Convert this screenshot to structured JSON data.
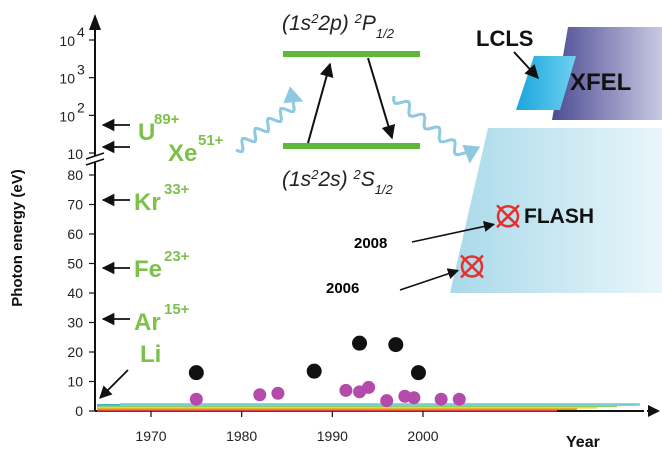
{
  "chart_data": {
    "type": "scatter",
    "xlabel": "Year",
    "ylabel": "Photon energy (eV)",
    "x_ticks": [
      "1970",
      "1980",
      "1990",
      "2000"
    ],
    "y_ticks_linear": [
      "0",
      "10",
      "20",
      "30",
      "40",
      "50",
      "60",
      "70",
      "80"
    ],
    "y_ticks_log": [
      {
        "base": "10",
        "exp": "4",
        "value": 10000
      },
      {
        "base": "10",
        "exp": "3",
        "value": 1000
      },
      {
        "base": "10",
        "exp": "2",
        "value": 100
      },
      {
        "base": "10",
        "exp": "",
        "value": 10
      }
    ],
    "xlim": [
      1965,
      2030
    ],
    "ylim_linear": [
      0,
      85
    ],
    "series": [
      {
        "color": "#111111",
        "points": [
          [
            1975,
            13
          ],
          [
            1988,
            13.5
          ],
          [
            1993,
            23
          ],
          [
            1997,
            22.5
          ],
          [
            1999.5,
            13
          ]
        ]
      },
      {
        "color": "#b44bab",
        "points": [
          [
            1975,
            4
          ],
          [
            1982,
            5.5
          ],
          [
            1984,
            6
          ],
          [
            1991.5,
            7
          ],
          [
            1993,
            6.5
          ],
          [
            1994,
            8
          ],
          [
            1996,
            3.5
          ],
          [
            1998,
            5
          ],
          [
            1999,
            4.5
          ],
          [
            2002,
            4
          ],
          [
            2004,
            4
          ]
        ]
      }
    ],
    "ions": [
      {
        "symbol": "U",
        "charge": "89+",
        "energy": 120
      },
      {
        "symbol": "Xe",
        "charge": "51+",
        "energy": 10
      },
      {
        "symbol": "Kr",
        "charge": "33+",
        "energy": 72
      },
      {
        "symbol": "Fe",
        "charge": "23+",
        "energy": 49
      },
      {
        "symbol": "Ar",
        "charge": "15+",
        "energy": 32
      },
      {
        "symbol": "Li",
        "charge": "",
        "energy": 0
      }
    ],
    "facilities": [
      {
        "name": "LCLS"
      },
      {
        "name": "XFEL"
      },
      {
        "name": "FLASH"
      }
    ],
    "flash_markers": [
      {
        "year": "2008",
        "energy": 66
      },
      {
        "year": "2006",
        "energy": 49
      }
    ],
    "level_scheme": {
      "upper": {
        "config": "(1s",
        "config_sup": "2",
        "config_mid": "2p)",
        "term_sup": "2",
        "term": "P",
        "term_sub": "1/2"
      },
      "lower": {
        "config": "(1s",
        "config_sup": "2",
        "config_mid": "2s)",
        "term_sup": "2",
        "term": "S",
        "term_sub": "1/2"
      }
    },
    "colors": {
      "ion_green": "#7cc24a",
      "level_green": "#5fb83a",
      "wave": "#8ec9e0",
      "flash_band": "#bfe3ee",
      "lcls": "#3bb9e6",
      "xfel": "#6a6aa8",
      "marker": "#e53030"
    }
  }
}
